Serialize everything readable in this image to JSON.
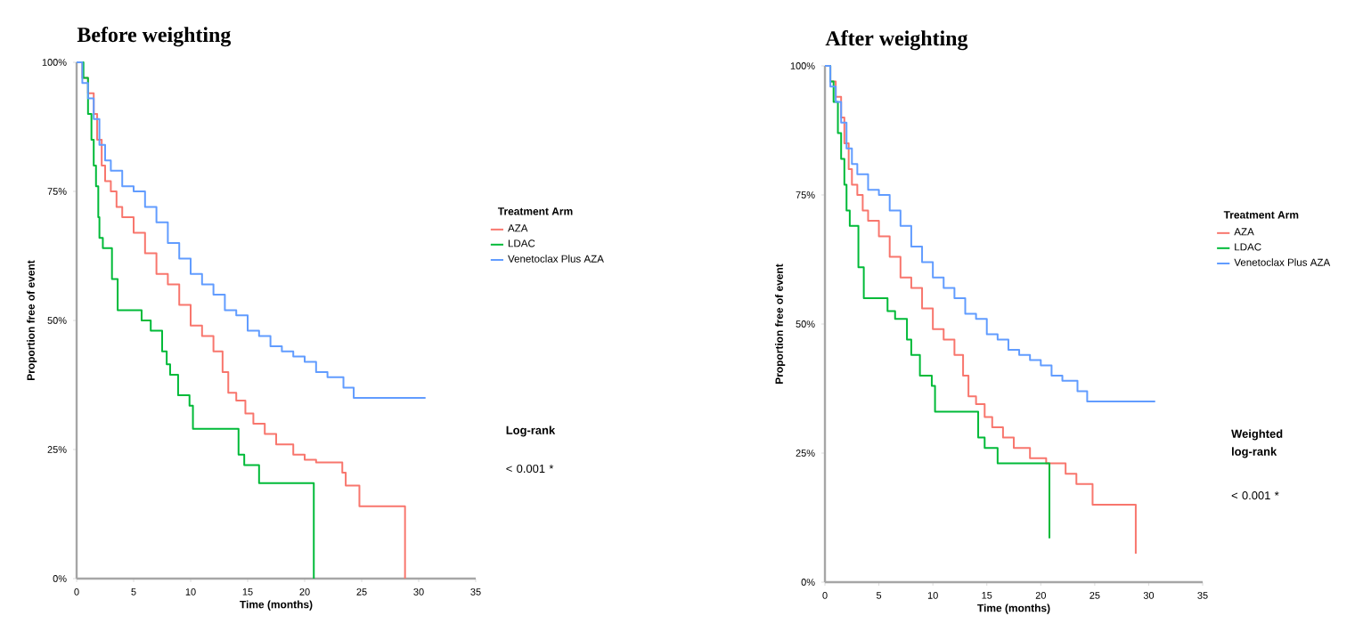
{
  "chart_data": [
    {
      "type": "step",
      "title": "Before weighting",
      "xlabel": "Time (months)",
      "ylabel": "Proportion free of event",
      "legend_title": "Treatment Arm",
      "legend": "right",
      "xlim": [
        0,
        35
      ],
      "ylim": [
        0,
        100
      ],
      "xticks": [
        0,
        5,
        10,
        15,
        20,
        25,
        30,
        35
      ],
      "yticks": [
        {
          "value": 0,
          "label": "0%"
        },
        {
          "value": 25,
          "label": "25%"
        },
        {
          "value": 50,
          "label": "50%"
        },
        {
          "value": 75,
          "label": "75%"
        },
        {
          "value": 100,
          "label": "100%"
        }
      ],
      "annotations": [
        "Log-rank",
        "< 0.001 *"
      ],
      "series": [
        {
          "name": "AZA",
          "color": "#f8766d",
          "x": [
            0,
            0.5,
            1,
            1.5,
            1.8,
            2.2,
            2.5,
            3,
            3.5,
            4,
            5,
            6,
            7,
            8,
            9,
            10,
            11,
            12,
            12.8,
            13.3,
            14,
            14.8,
            15.5,
            16.5,
            17.5,
            19,
            20,
            21,
            23.3,
            23.6,
            24.8,
            28.8
          ],
          "values": [
            100,
            97,
            94,
            90,
            85,
            80,
            77,
            75,
            72,
            70,
            67,
            63,
            59,
            57,
            53,
            49,
            47,
            44,
            40,
            36,
            34.5,
            32,
            30,
            28,
            26,
            24,
            23,
            22.5,
            20.5,
            18,
            14,
            0
          ]
        },
        {
          "name": "LDAC",
          "color": "#00ba38",
          "x": [
            0,
            0.6,
            1,
            1.3,
            1.5,
            1.7,
            1.9,
            2,
            2.3,
            3.1,
            3.6,
            5.7,
            6.5,
            7.5,
            7.9,
            8.2,
            8.9,
            9.9,
            10.2,
            14.2,
            14.7,
            16,
            20.8
          ],
          "values": [
            100,
            97,
            90,
            85,
            80,
            76,
            70,
            66,
            64,
            58,
            52,
            50,
            48,
            44,
            41.5,
            39.5,
            35.5,
            33.5,
            29,
            24,
            22,
            18.5,
            0
          ]
        },
        {
          "name": "Venetoclax Plus AZA",
          "color": "#619cff",
          "x": [
            0,
            0.5,
            1,
            1.5,
            2,
            2.5,
            3,
            4,
            5,
            6,
            7,
            8,
            9,
            10,
            11,
            12,
            13,
            14,
            15,
            16,
            17,
            18,
            19,
            20,
            21,
            22,
            23.4,
            24.3,
            30.6
          ],
          "values": [
            100,
            96,
            93,
            89,
            84,
            81,
            79,
            76,
            75,
            72,
            69,
            65,
            62,
            59,
            57,
            55,
            52,
            51,
            48,
            47,
            45,
            44,
            43,
            42,
            40,
            39,
            37,
            35,
            35
          ]
        }
      ]
    },
    {
      "type": "step",
      "title": "After weighting",
      "xlabel": "Time (months)",
      "ylabel": "Proportion free of event",
      "legend_title": "Treatment Arm",
      "legend": "right",
      "xlim": [
        0,
        35
      ],
      "ylim": [
        0,
        100
      ],
      "xticks": [
        0,
        5,
        10,
        15,
        20,
        25,
        30,
        35
      ],
      "yticks": [
        {
          "value": 0,
          "label": "0%"
        },
        {
          "value": 25,
          "label": "25%"
        },
        {
          "value": 50,
          "label": "50%"
        },
        {
          "value": 75,
          "label": "75%"
        },
        {
          "value": 100,
          "label": "100%"
        }
      ],
      "annotations": [
        "Weighted log-rank",
        "< 0.001 *"
      ],
      "series": [
        {
          "name": "AZA",
          "color": "#f8766d",
          "x": [
            0,
            0.5,
            1,
            1.5,
            1.8,
            2.2,
            2.5,
            3,
            3.5,
            4,
            5,
            6,
            7,
            8,
            9,
            10,
            11,
            12,
            12.8,
            13.3,
            14,
            14.8,
            15.5,
            16.5,
            17.5,
            19,
            20.5,
            22.3,
            23.3,
            24.8,
            28.8
          ],
          "values": [
            100,
            97,
            94,
            90,
            85,
            80,
            77,
            75,
            72,
            70,
            67,
            63,
            59,
            57,
            53,
            49,
            47,
            44,
            40,
            36,
            34.5,
            32,
            30,
            28,
            26,
            24,
            23,
            21,
            19,
            15,
            5.5
          ]
        },
        {
          "name": "LDAC",
          "color": "#00ba38",
          "x": [
            0,
            0.5,
            0.8,
            1.2,
            1.5,
            1.8,
            2,
            2.3,
            3.1,
            3.6,
            5.8,
            6.5,
            7.6,
            8,
            8.8,
            9.9,
            10.2,
            14.2,
            14.8,
            16,
            20.8
          ],
          "values": [
            100,
            97,
            93,
            87,
            82,
            77,
            72,
            69,
            61,
            55,
            52.5,
            51,
            47,
            44,
            40,
            38,
            33,
            28,
            26,
            23,
            8.5
          ]
        },
        {
          "name": "Venetoclax Plus AZA",
          "color": "#619cff",
          "x": [
            0,
            0.5,
            1,
            1.5,
            2,
            2.5,
            3,
            4,
            5,
            6,
            7,
            8,
            9,
            10,
            11,
            12,
            13,
            14,
            15,
            16,
            17,
            18,
            19,
            20,
            21,
            22,
            23.4,
            24.3,
            30.6
          ],
          "values": [
            100,
            96,
            93,
            89,
            84,
            81,
            79,
            76,
            75,
            72,
            69,
            65,
            62,
            59,
            57,
            55,
            52,
            51,
            48,
            47,
            45,
            44,
            43,
            42,
            40,
            39,
            37,
            35,
            35
          ]
        }
      ]
    }
  ]
}
